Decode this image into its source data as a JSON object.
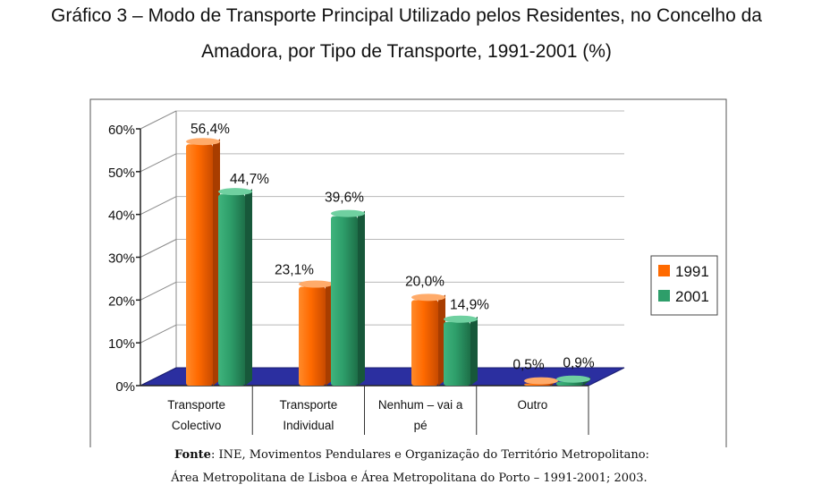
{
  "title_line1": "Gráfico 3 – Modo de Transporte Principal Utilizado pelos Residentes, no Concelho da",
  "title_line2": "Amadora, por Tipo de Transporte, 1991-2001 (%)",
  "source": {
    "label": "Fonte",
    "line1_rest": ": INE, Movimentos Pendulares e Organização do Território Metropolitano:",
    "line2": "Área Metropolitana de Lisboa e Área Metropolitana do Porto – 1991-2001; 2003."
  },
  "colors": {
    "series_1991": "#ff6a00",
    "series_2001": "#2e9e6a",
    "floor": "#2b2fa0"
  },
  "chart_data": {
    "type": "bar",
    "title": "Gráfico 3 – Modo de Transporte Principal Utilizado pelos Residentes, no Concelho da Amadora, por Tipo de Transporte, 1991-2001 (%)",
    "categories": [
      [
        "Transporte",
        "Colectivo"
      ],
      [
        "Transporte",
        "Individual"
      ],
      [
        "Nenhum – vai a",
        "pé"
      ],
      [
        "Outro"
      ]
    ],
    "series": [
      {
        "name": "1991",
        "values": [
          56.4,
          23.1,
          20.0,
          0.5
        ],
        "labels": [
          "56,4%",
          "23,1%",
          "20,0%",
          "0,5%"
        ]
      },
      {
        "name": "2001",
        "values": [
          44.7,
          39.6,
          14.9,
          0.9
        ],
        "labels": [
          "44,7%",
          "39,6%",
          "14,9%",
          "0,9%"
        ]
      }
    ],
    "yticks": [
      "0%",
      "10%",
      "20%",
      "30%",
      "40%",
      "50%",
      "60%"
    ],
    "ylim": [
      0,
      60
    ],
    "xlabel": "",
    "ylabel": "",
    "legend_position": "right",
    "grid": true
  }
}
